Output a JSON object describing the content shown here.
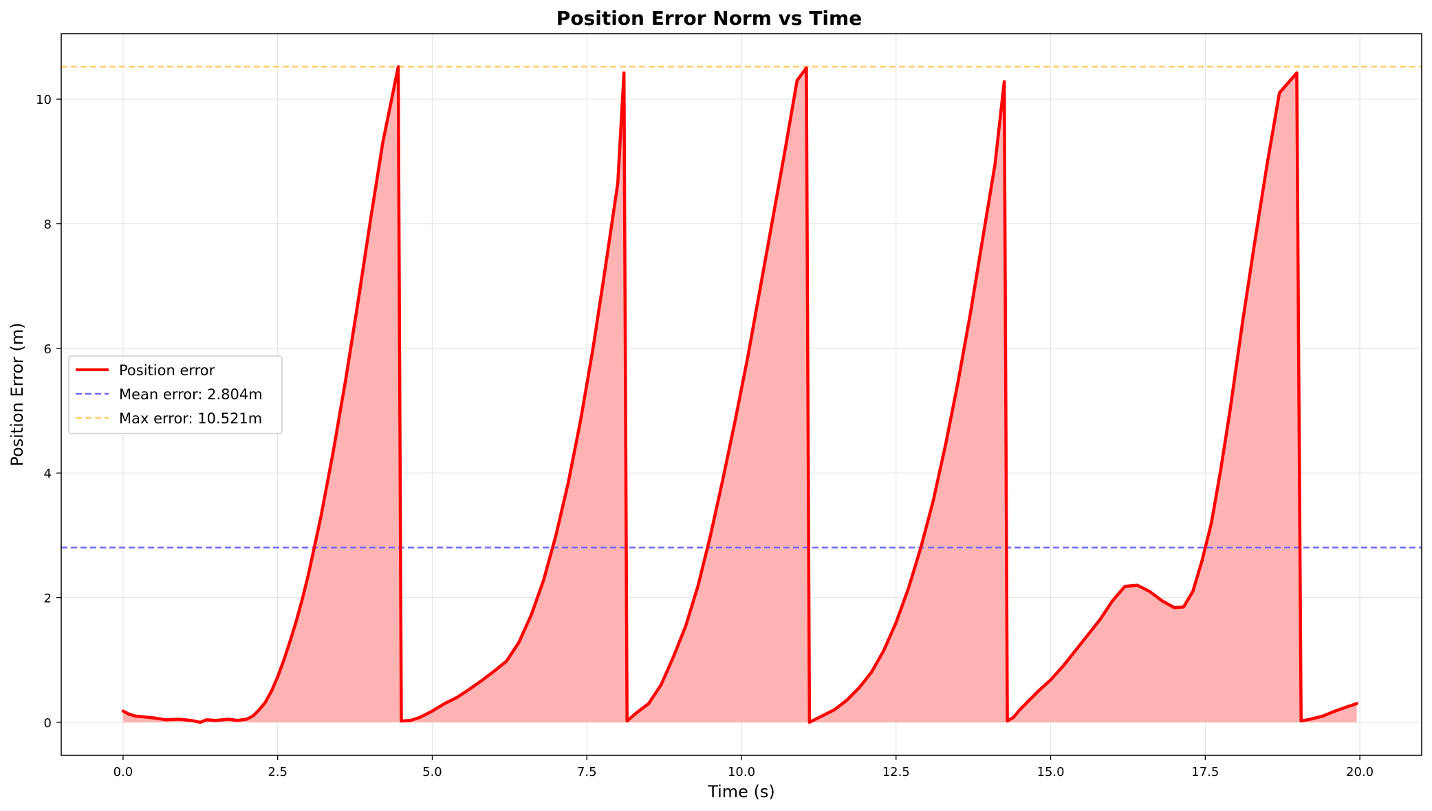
{
  "chart_data": {
    "type": "area",
    "title": "Position Error Norm vs Time",
    "xlabel": "Time (s)",
    "ylabel": "Position Error (m)",
    "xlim": [
      -1.0,
      21.0
    ],
    "ylim": [
      -0.53,
      11.05
    ],
    "x_ticks": [
      0.0,
      2.5,
      5.0,
      7.5,
      10.0,
      12.5,
      15.0,
      17.5,
      20.0
    ],
    "x_tick_labels": [
      "0.0",
      "2.5",
      "5.0",
      "7.5",
      "10.0",
      "12.5",
      "15.0",
      "17.5",
      "20.0"
    ],
    "y_ticks": [
      0,
      2,
      4,
      6,
      8,
      10
    ],
    "y_tick_labels": [
      "0",
      "2",
      "4",
      "6",
      "8",
      "10"
    ],
    "grid": true,
    "legend_position": "center-left",
    "colors": {
      "series": "#ff0000",
      "fill": "#ffb3b3",
      "mean": "#6b6bff",
      "max": "#ffcc66"
    },
    "series": [
      {
        "name": "Position error",
        "x": [
          0.0,
          0.1,
          0.2,
          0.3,
          0.5,
          0.7,
          0.9,
          1.1,
          1.25,
          1.35,
          1.5,
          1.7,
          1.85,
          2.0,
          2.1,
          2.2,
          2.3,
          2.4,
          2.5,
          2.6,
          2.7,
          2.8,
          2.9,
          3.0,
          3.2,
          3.4,
          3.6,
          3.8,
          4.0,
          4.2,
          4.45,
          4.5,
          4.65,
          4.8,
          5.0,
          5.2,
          5.4,
          5.6,
          5.8,
          6.0,
          6.1,
          6.2,
          6.4,
          6.6,
          6.8,
          7.0,
          7.2,
          7.4,
          7.6,
          7.8,
          8.0,
          8.1,
          8.15,
          8.3,
          8.5,
          8.7,
          8.9,
          9.1,
          9.3,
          9.5,
          9.7,
          9.9,
          10.1,
          10.3,
          10.5,
          10.7,
          10.9,
          11.05,
          11.1,
          11.3,
          11.5,
          11.7,
          11.9,
          12.1,
          12.3,
          12.5,
          12.7,
          12.9,
          13.1,
          13.3,
          13.5,
          13.7,
          13.9,
          14.1,
          14.25,
          14.3,
          14.4,
          14.5,
          14.6,
          14.8,
          15.0,
          15.2,
          15.4,
          15.6,
          15.8,
          16.0,
          16.2,
          16.4,
          16.6,
          16.8,
          17.0,
          17.15,
          17.3,
          17.45,
          17.6,
          17.75,
          17.9,
          18.1,
          18.3,
          18.5,
          18.7,
          18.98,
          19.05,
          19.2,
          19.4,
          19.6,
          19.8,
          19.95
        ],
        "y": [
          0.18,
          0.13,
          0.1,
          0.09,
          0.07,
          0.04,
          0.05,
          0.03,
          0.0,
          0.04,
          0.03,
          0.05,
          0.03,
          0.05,
          0.1,
          0.2,
          0.32,
          0.5,
          0.73,
          1.0,
          1.3,
          1.62,
          1.98,
          2.38,
          3.3,
          4.35,
          5.5,
          6.75,
          8.05,
          9.3,
          10.52,
          0.02,
          0.03,
          0.08,
          0.18,
          0.3,
          0.4,
          0.53,
          0.67,
          0.82,
          0.9,
          0.98,
          1.28,
          1.72,
          2.28,
          3.0,
          3.85,
          4.85,
          6.0,
          7.3,
          8.65,
          10.42,
          0.02,
          0.15,
          0.3,
          0.6,
          1.05,
          1.55,
          2.2,
          3.0,
          3.9,
          4.85,
          5.85,
          6.95,
          8.05,
          9.15,
          10.3,
          10.5,
          0.0,
          0.1,
          0.2,
          0.35,
          0.55,
          0.8,
          1.15,
          1.6,
          2.15,
          2.8,
          3.55,
          4.45,
          5.45,
          6.55,
          7.75,
          8.95,
          10.28,
          0.02,
          0.08,
          0.2,
          0.3,
          0.5,
          0.68,
          0.9,
          1.15,
          1.4,
          1.65,
          1.95,
          2.18,
          2.2,
          2.1,
          1.95,
          1.84,
          1.85,
          2.1,
          2.6,
          3.2,
          4.05,
          5.0,
          6.4,
          7.7,
          8.95,
          10.1,
          10.42,
          0.02,
          0.05,
          0.1,
          0.18,
          0.25,
          0.3
        ]
      }
    ],
    "reference_lines": [
      {
        "name": "Mean error: 2.804m",
        "y": 2.804,
        "style": "dashed",
        "color": "#6b6bff"
      },
      {
        "name": "Max error: 10.521m",
        "y": 10.521,
        "style": "dashed",
        "color": "#ffcc66"
      }
    ]
  }
}
